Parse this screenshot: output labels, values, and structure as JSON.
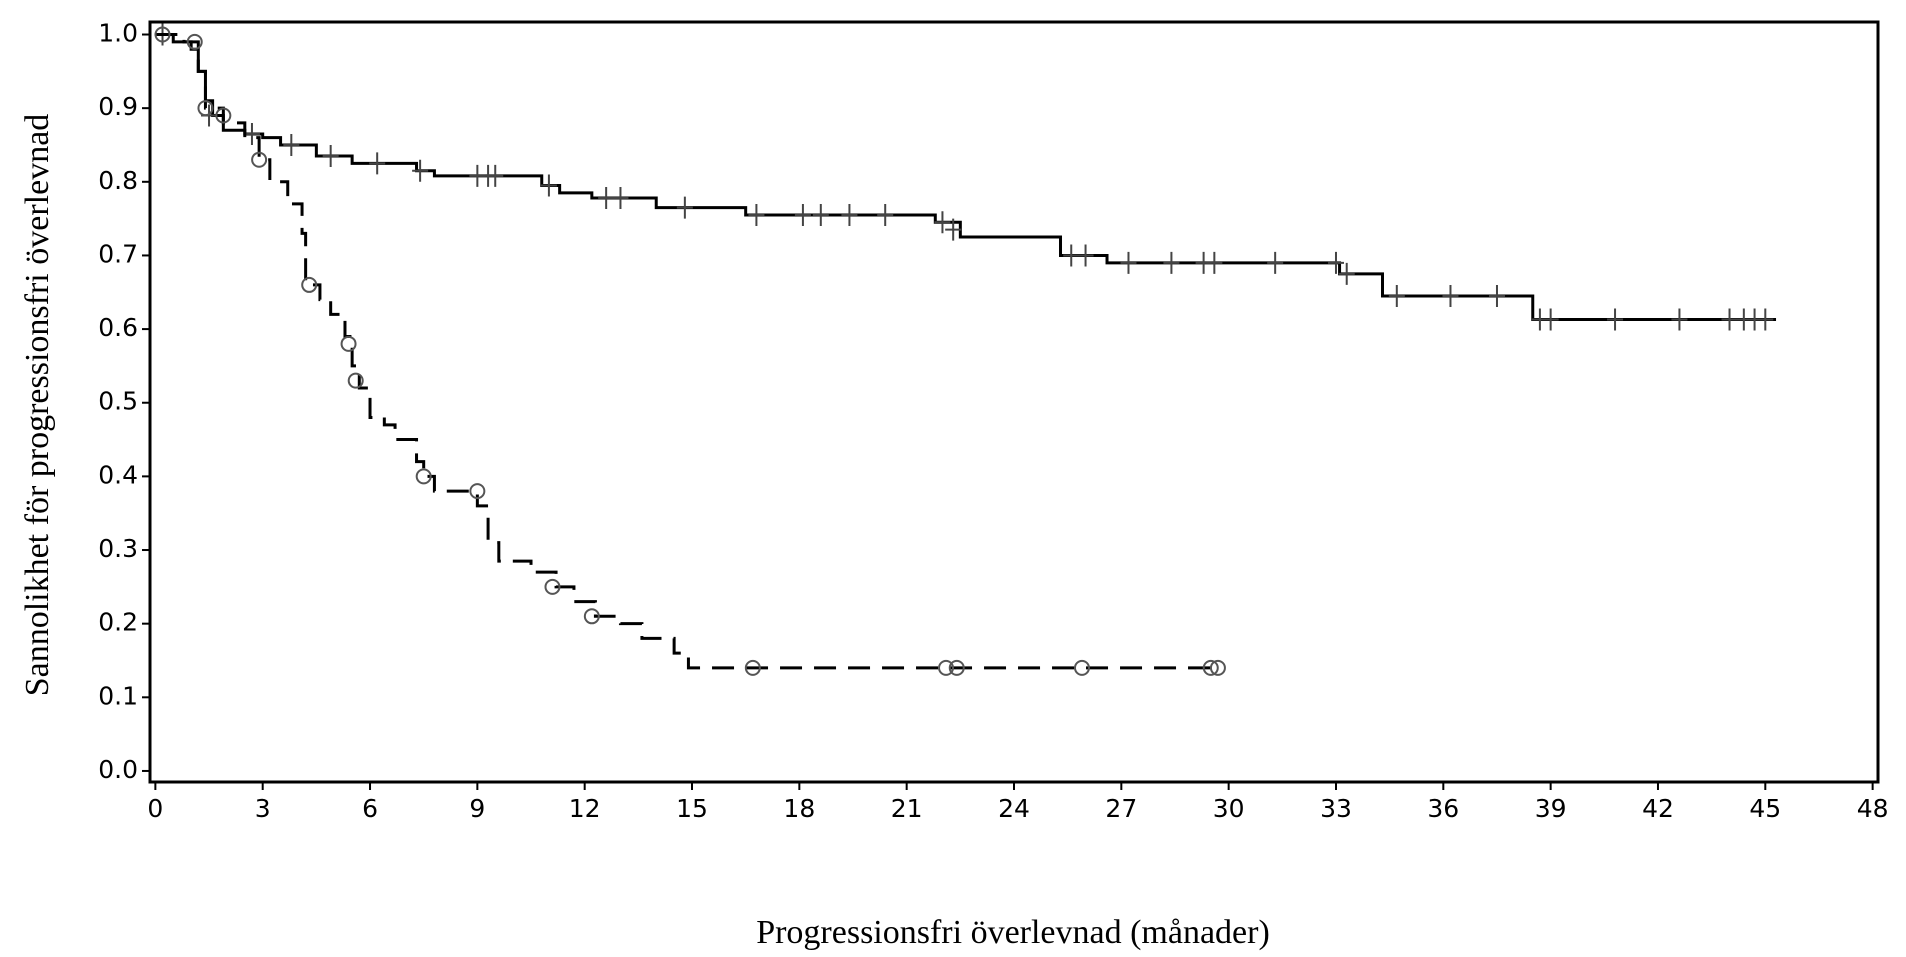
{
  "chart_data": {
    "type": "step",
    "xlabel": "Progressionsfri överlevnad (månader)",
    "ylabel": "Sannolikhet för progressionsfri överlevnad",
    "xlim": [
      -0.15,
      48.15
    ],
    "ylim": [
      -0.015,
      1.017
    ],
    "xticks": [
      0,
      3,
      6,
      9,
      12,
      15,
      18,
      21,
      24,
      27,
      30,
      33,
      36,
      39,
      42,
      45,
      48
    ],
    "yticks": [
      {
        "value": 0,
        "label": "0.0"
      },
      0.1,
      0.2,
      0.3,
      0.4,
      0.5,
      0.6,
      0.7,
      0.8,
      0.9,
      {
        "value": 1,
        "label": "1.0"
      }
    ],
    "series": [
      {
        "color": "#000000",
        "dashed": false,
        "censor_marker": "plus",
        "x": [
          0,
          0.5,
          1.0,
          1.2,
          1.4,
          1.6,
          1.9,
          2.5,
          3.0,
          3.5,
          4.5,
          5.5,
          7.3,
          7.8,
          10.8,
          11.3,
          12.2,
          14.0,
          16.5,
          21.8,
          22.5,
          25.3,
          26.6,
          33.1,
          34.3,
          38.5,
          45.3
        ],
        "values": [
          1.0,
          0.99,
          0.98,
          0.95,
          0.91,
          0.89,
          0.87,
          0.865,
          0.86,
          0.85,
          0.835,
          0.825,
          0.815,
          0.808,
          0.795,
          0.785,
          0.778,
          0.765,
          0.755,
          0.745,
          0.725,
          0.7,
          0.69,
          0.675,
          0.645,
          0.613,
          0.613
        ],
        "censor_x": [
          0.2,
          1.5,
          2.7,
          3.8,
          4.9,
          6.2,
          7.4,
          9.0,
          9.3,
          9.5,
          11.0,
          12.6,
          13.0,
          14.8,
          16.8,
          18.1,
          18.6,
          19.4,
          20.4,
          22.0,
          22.3,
          25.6,
          26.0,
          27.2,
          28.4,
          29.3,
          29.6,
          31.3,
          33.0,
          33.3,
          34.7,
          36.2,
          37.5,
          38.7,
          39.0,
          40.8,
          42.6,
          44.0,
          44.4,
          44.7,
          45.0
        ],
        "censor_values": [
          1.0,
          0.89,
          0.865,
          0.85,
          0.835,
          0.825,
          0.815,
          0.808,
          0.808,
          0.808,
          0.795,
          0.778,
          0.778,
          0.765,
          0.755,
          0.755,
          0.755,
          0.755,
          0.755,
          0.745,
          0.735,
          0.7,
          0.7,
          0.69,
          0.69,
          0.69,
          0.69,
          0.69,
          0.69,
          0.675,
          0.645,
          0.645,
          0.645,
          0.613,
          0.613,
          0.613,
          0.613,
          0.613,
          0.613,
          0.613,
          0.613
        ]
      },
      {
        "color": "#000000",
        "dashed": true,
        "censor_marker": "circle",
        "x": [
          0,
          0.8,
          1.2,
          1.4,
          1.9,
          2.5,
          2.9,
          3.2,
          3.7,
          4.1,
          4.2,
          4.6,
          4.9,
          5.3,
          5.5,
          5.7,
          6.0,
          6.4,
          6.7,
          7.3,
          7.5,
          7.8,
          9.0,
          9.3,
          9.6,
          10.5,
          11.2,
          11.7,
          12.3,
          13.0,
          13.6,
          14.5,
          14.9,
          29.7
        ],
        "values": [
          1.0,
          0.99,
          0.95,
          0.9,
          0.88,
          0.86,
          0.83,
          0.8,
          0.77,
          0.73,
          0.66,
          0.64,
          0.62,
          0.59,
          0.55,
          0.52,
          0.48,
          0.47,
          0.45,
          0.42,
          0.4,
          0.38,
          0.36,
          0.31,
          0.285,
          0.27,
          0.25,
          0.23,
          0.21,
          0.2,
          0.18,
          0.16,
          0.14,
          0.14
        ],
        "censor_x": [
          0.2,
          1.1,
          1.4,
          1.9,
          2.9,
          4.3,
          5.4,
          5.6,
          7.5,
          9.0,
          11.1,
          12.2,
          16.7,
          22.1,
          22.4,
          25.9,
          29.5,
          29.7
        ],
        "censor_values": [
          1.0,
          0.99,
          0.9,
          0.89,
          0.83,
          0.66,
          0.58,
          0.53,
          0.4,
          0.38,
          0.25,
          0.21,
          0.14,
          0.14,
          0.14,
          0.14,
          0.14,
          0.14
        ]
      }
    ]
  }
}
